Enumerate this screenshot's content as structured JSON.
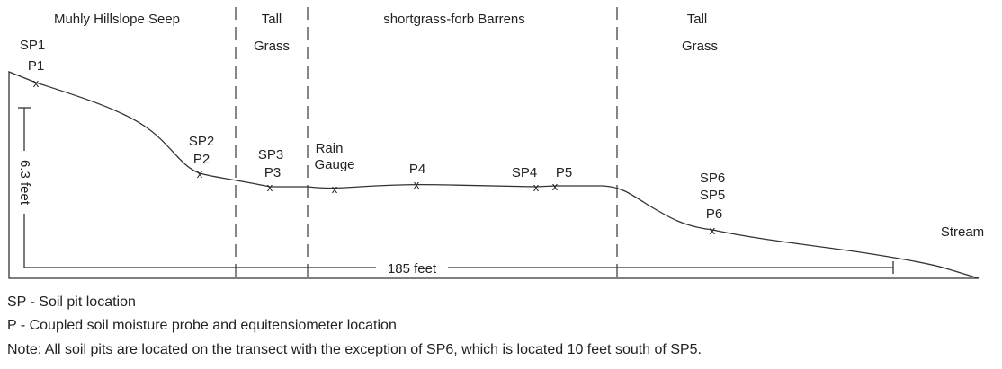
{
  "zones": [
    [
      "Muhly Hillslope Seep"
    ],
    [
      "Tall",
      "Grass"
    ],
    [
      "shortgrass-forb Barrens"
    ],
    [
      "Tall",
      "Grass"
    ]
  ],
  "stations": [
    [
      "SP1",
      "P1"
    ],
    [
      "SP2",
      "P2"
    ],
    [
      "SP3",
      "P3"
    ],
    [
      "Rain",
      "Gauge"
    ],
    [
      "P4"
    ],
    [
      "SP4"
    ],
    [
      "P5"
    ],
    [
      "SP6",
      "SP5",
      "P6"
    ]
  ],
  "stream": "Stream",
  "dimensions": {
    "height": "6.3 feet",
    "length": "185 feet"
  },
  "legend": [
    "SP - Soil pit location",
    "P - Coupled soil moisture probe and equitensiometer location",
    "Note: All soil pits are located on the transect with the exception of SP6, which is located 10 feet south of SP5."
  ]
}
